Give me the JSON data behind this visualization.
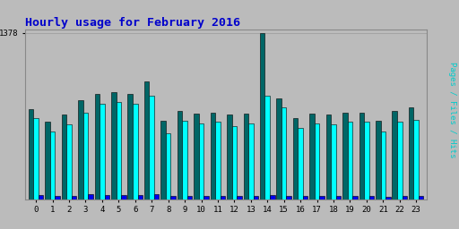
{
  "title": "Hourly usage for February 2016",
  "title_color": "#0000cc",
  "hours": [
    0,
    1,
    2,
    3,
    4,
    5,
    6,
    7,
    8,
    9,
    10,
    11,
    12,
    13,
    14,
    15,
    16,
    17,
    18,
    19,
    20,
    21,
    22,
    23
  ],
  "pages": [
    750,
    640,
    700,
    820,
    870,
    890,
    870,
    980,
    650,
    730,
    710,
    720,
    700,
    710,
    1378,
    840,
    670,
    710,
    700,
    720,
    720,
    650,
    730,
    760
  ],
  "files": [
    670,
    560,
    620,
    720,
    790,
    810,
    790,
    860,
    550,
    650,
    630,
    640,
    610,
    630,
    860,
    760,
    590,
    630,
    620,
    640,
    640,
    560,
    640,
    660
  ],
  "hits": [
    38,
    25,
    30,
    42,
    38,
    38,
    38,
    42,
    30,
    30,
    25,
    30,
    30,
    25,
    38,
    30,
    25,
    25,
    25,
    25,
    25,
    20,
    25,
    25
  ],
  "pages_color": "#006666",
  "files_color": "#00ffff",
  "hits_color": "#0000ee",
  "background_color": "#bbbbbb",
  "plot_background": "#bbbbbb",
  "ymax": 1378,
  "ymin": 0,
  "bar_width": 0.3
}
